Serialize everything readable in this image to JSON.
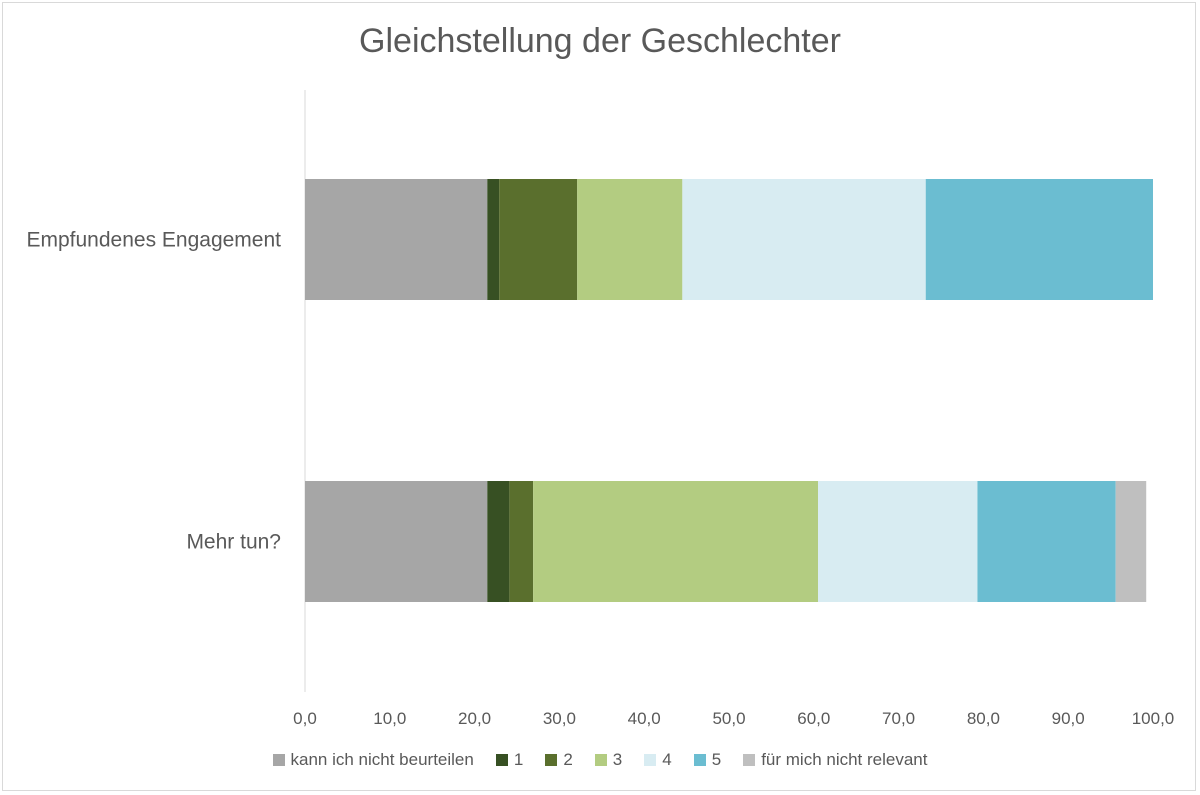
{
  "chart_data": {
    "type": "bar",
    "orientation": "horizontal",
    "stacked": true,
    "title": "Gleichstellung der Geschlechter",
    "categories": [
      "Empfundenes Engagement",
      "Mehr tun?"
    ],
    "series": [
      {
        "name": "kann ich nicht beurteilen",
        "color": "#a6a6a6",
        "values": [
          21.5,
          21.5
        ]
      },
      {
        "name": "1",
        "color": "#375023",
        "values": [
          1.4,
          2.6
        ]
      },
      {
        "name": "2",
        "color": "#5a6f2d",
        "values": [
          9.2,
          2.8
        ]
      },
      {
        "name": "3",
        "color": "#b3cc81",
        "values": [
          12.4,
          33.6
        ]
      },
      {
        "name": "4",
        "color": "#d8ecf2",
        "values": [
          28.7,
          18.8
        ]
      },
      {
        "name": "5",
        "color": "#6bbdd1",
        "values": [
          26.8,
          16.3
        ]
      },
      {
        "name": "für mich nicht relevant",
        "color": "#bfbfbf",
        "values": [
          0,
          3.6
        ]
      }
    ],
    "xlim": [
      0,
      100
    ],
    "xticks": [
      "0,0",
      "10,0",
      "20,0",
      "30,0",
      "40,0",
      "50,0",
      "60,0",
      "70,0",
      "80,0",
      "90,0",
      "100,0"
    ],
    "grid": false,
    "legend_position": "bottom"
  }
}
